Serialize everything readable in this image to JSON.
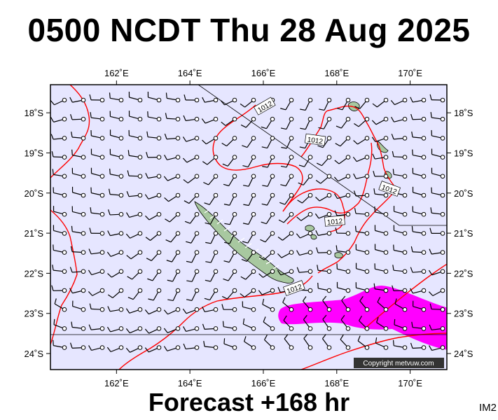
{
  "title": "0500 NCDT Thu 28 Aug 2025",
  "forecast": "Forecast +168 hr",
  "image_code": "IM2",
  "copyright": "Copyright metvuw.com",
  "map": {
    "lon_range": [
      160.2,
      171.0
    ],
    "lat_range": [
      -17.3,
      -24.4
    ],
    "lon_ticks": [
      {
        "value": 162,
        "label": "162˚E"
      },
      {
        "value": 164,
        "label": "164˚E"
      },
      {
        "value": 166,
        "label": "166˚E"
      },
      {
        "value": 168,
        "label": "168˚E"
      },
      {
        "value": 170,
        "label": "170˚E"
      }
    ],
    "lat_ticks": [
      {
        "value": -18,
        "label": "18˚S"
      },
      {
        "value": -19,
        "label": "19˚S"
      },
      {
        "value": -20,
        "label": "20˚S"
      },
      {
        "value": -21,
        "label": "21˚S"
      },
      {
        "value": -22,
        "label": "22˚S"
      },
      {
        "value": -23,
        "label": "23˚S"
      },
      {
        "value": -24,
        "label": "24˚S"
      }
    ],
    "isobar_labels": [
      "1012",
      "1012",
      "1012",
      "1012",
      "1012"
    ],
    "colors": {
      "ocean": "#e6e6ff",
      "isobar": "#ff0000",
      "rain": "#ff00ff",
      "land": "#a8c8a0",
      "border": "#000000"
    }
  }
}
